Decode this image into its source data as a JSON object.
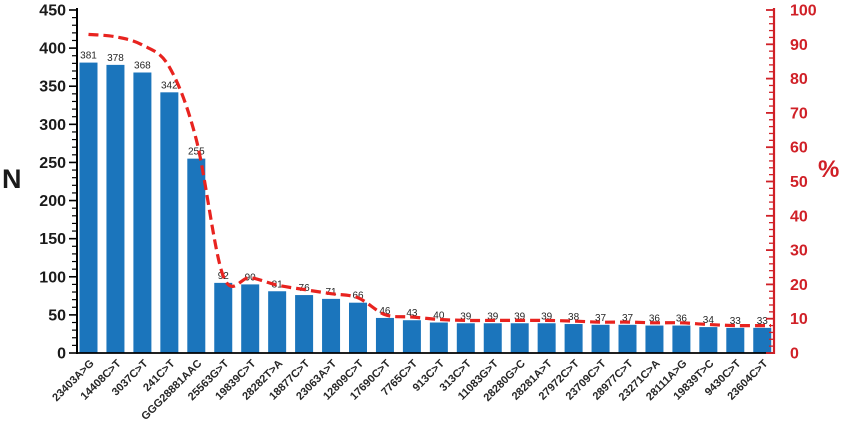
{
  "figure": {
    "left_axis_title": "N",
    "right_axis_title": "%"
  },
  "colors": {
    "bar_blue": "#1b75bc",
    "line_red": "#e8231f",
    "axis_red": "#d02027",
    "axis_black": "#000000",
    "label_dark": "#262626"
  },
  "chart_data": {
    "type": "bar",
    "subtype": "pareto-combo (bars = N counts, dashed line = %)",
    "title": "",
    "xlabel": "",
    "ylabel_left": "N",
    "ylabel_right": "%",
    "grid": false,
    "legend": false,
    "categories": [
      "23403A>G",
      "14408C>T",
      "3037C>T",
      "241C>T",
      "GGG28881AAC",
      "25563G>T",
      "19839C>T",
      "28282T>A",
      "18877C>T",
      "23063A>T",
      "12809C>T",
      "17690C>T",
      "7765C>T",
      "913C>T",
      "313C>T",
      "11083G>T",
      "28280G>C",
      "28281A>T",
      "27972C>T",
      "23709C>T",
      "28977C>T",
      "23271C>A",
      "28111A>G",
      "19839T>C",
      "9430C>T",
      "23604C>T"
    ],
    "values": [
      381,
      378,
      368,
      342,
      255,
      92,
      90,
      81,
      76,
      71,
      66,
      46,
      43,
      40,
      39,
      39,
      39,
      39,
      38,
      37,
      37,
      36,
      36,
      34,
      33,
      33
    ],
    "series": [
      {
        "name": "N",
        "type": "bar",
        "values": [
          381,
          378,
          368,
          342,
          255,
          92,
          90,
          81,
          76,
          71,
          66,
          46,
          43,
          40,
          39,
          39,
          39,
          39,
          38,
          37,
          37,
          36,
          36,
          34,
          33,
          33
        ]
      },
      {
        "name": "%",
        "type": "line",
        "style": "dashed",
        "values": [
          92.9,
          92.2,
          89.8,
          83.4,
          62.2,
          22.4,
          22.0,
          19.8,
          18.5,
          17.3,
          16.1,
          11.2,
          10.5,
          9.8,
          9.5,
          9.5,
          9.5,
          9.5,
          9.3,
          9.0,
          9.0,
          8.8,
          8.8,
          8.3,
          8.0,
          8.0
        ]
      }
    ],
    "left_axis": {
      "label": "N",
      "min": 0,
      "max": 450,
      "major_step": 50,
      "minor_step": 10,
      "major_ticks": [
        0,
        50,
        100,
        150,
        200,
        250,
        300,
        350,
        400,
        450
      ]
    },
    "right_axis": {
      "label": "%",
      "min": 0,
      "max": 100,
      "major_step": 10,
      "minor_step": 2,
      "major_ticks": [
        0,
        10,
        20,
        30,
        40,
        50,
        60,
        70,
        80,
        90,
        100
      ]
    }
  }
}
